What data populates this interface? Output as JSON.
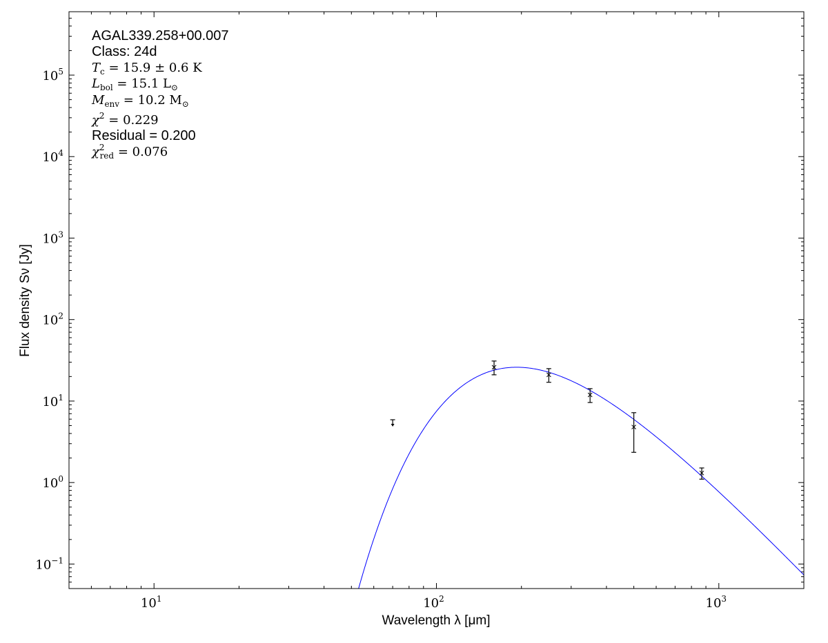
{
  "chart_data": {
    "type": "scatter",
    "title": "",
    "xlabel": "Wavelength λ [μm]",
    "ylabel": "Flux density Sν [Jy]",
    "xscale": "log",
    "yscale": "log",
    "xlim": [
      5,
      2000
    ],
    "ylim": [
      0.05,
      600000
    ],
    "grid": false,
    "x_ticks": [
      {
        "value": 10,
        "label": "10",
        "exp": "1"
      },
      {
        "value": 100,
        "label": "10",
        "exp": "2"
      },
      {
        "value": 1000,
        "label": "10",
        "exp": "3"
      }
    ],
    "y_ticks": [
      {
        "value": 0.1,
        "label": "10",
        "exp": "−1"
      },
      {
        "value": 1,
        "label": "10",
        "exp": "0"
      },
      {
        "value": 10,
        "label": "10",
        "exp": "1"
      },
      {
        "value": 100,
        "label": "10",
        "exp": "2"
      },
      {
        "value": 1000,
        "label": "10",
        "exp": "3"
      },
      {
        "value": 10000,
        "label": "10",
        "exp": "4"
      },
      {
        "value": 100000,
        "label": "10",
        "exp": "5"
      }
    ],
    "points": [
      {
        "x": 160,
        "y": 26,
        "yerr_low": 21,
        "yerr_high": 31
      },
      {
        "x": 250,
        "y": 21,
        "yerr_low": 17,
        "yerr_high": 25
      },
      {
        "x": 350,
        "y": 11.9,
        "yerr_low": 9.6,
        "yerr_high": 14.2
      },
      {
        "x": 500,
        "y": 4.8,
        "yerr_low": 2.35,
        "yerr_high": 7.2
      },
      {
        "x": 870,
        "y": 1.31,
        "yerr_low": 1.1,
        "yerr_high": 1.51
      }
    ],
    "upper_limits": [
      {
        "x": 70,
        "y": 5.9
      }
    ],
    "model": {
      "type": "modified blackbody",
      "temperature_K": 15.9,
      "beta": 1.75,
      "peak_flux_Jy": 26,
      "color": "#0000ff"
    },
    "marker_color": "#000000"
  },
  "annotations": {
    "source": "AGAL339.258+00.007",
    "class": "Class: 24d",
    "tc": {
      "sym": "T",
      "sub": "c",
      "rest": " = 15.9 ± 0.6 K"
    },
    "lbol": {
      "sym": "L",
      "sub": "bol",
      "rest": " = 15.1 L",
      "odot": "⊙"
    },
    "menv": {
      "sym": "M",
      "sub": "env",
      "rest": " = 10.2 M",
      "odot": "⊙"
    },
    "chi2": {
      "sym": "χ",
      "sup": "2",
      "rest": " = 0.229"
    },
    "residual": "Residual = 0.200",
    "chi2red": {
      "sym": "χ",
      "sup": "2",
      "sub": "red",
      "rest": " = 0.076"
    }
  }
}
